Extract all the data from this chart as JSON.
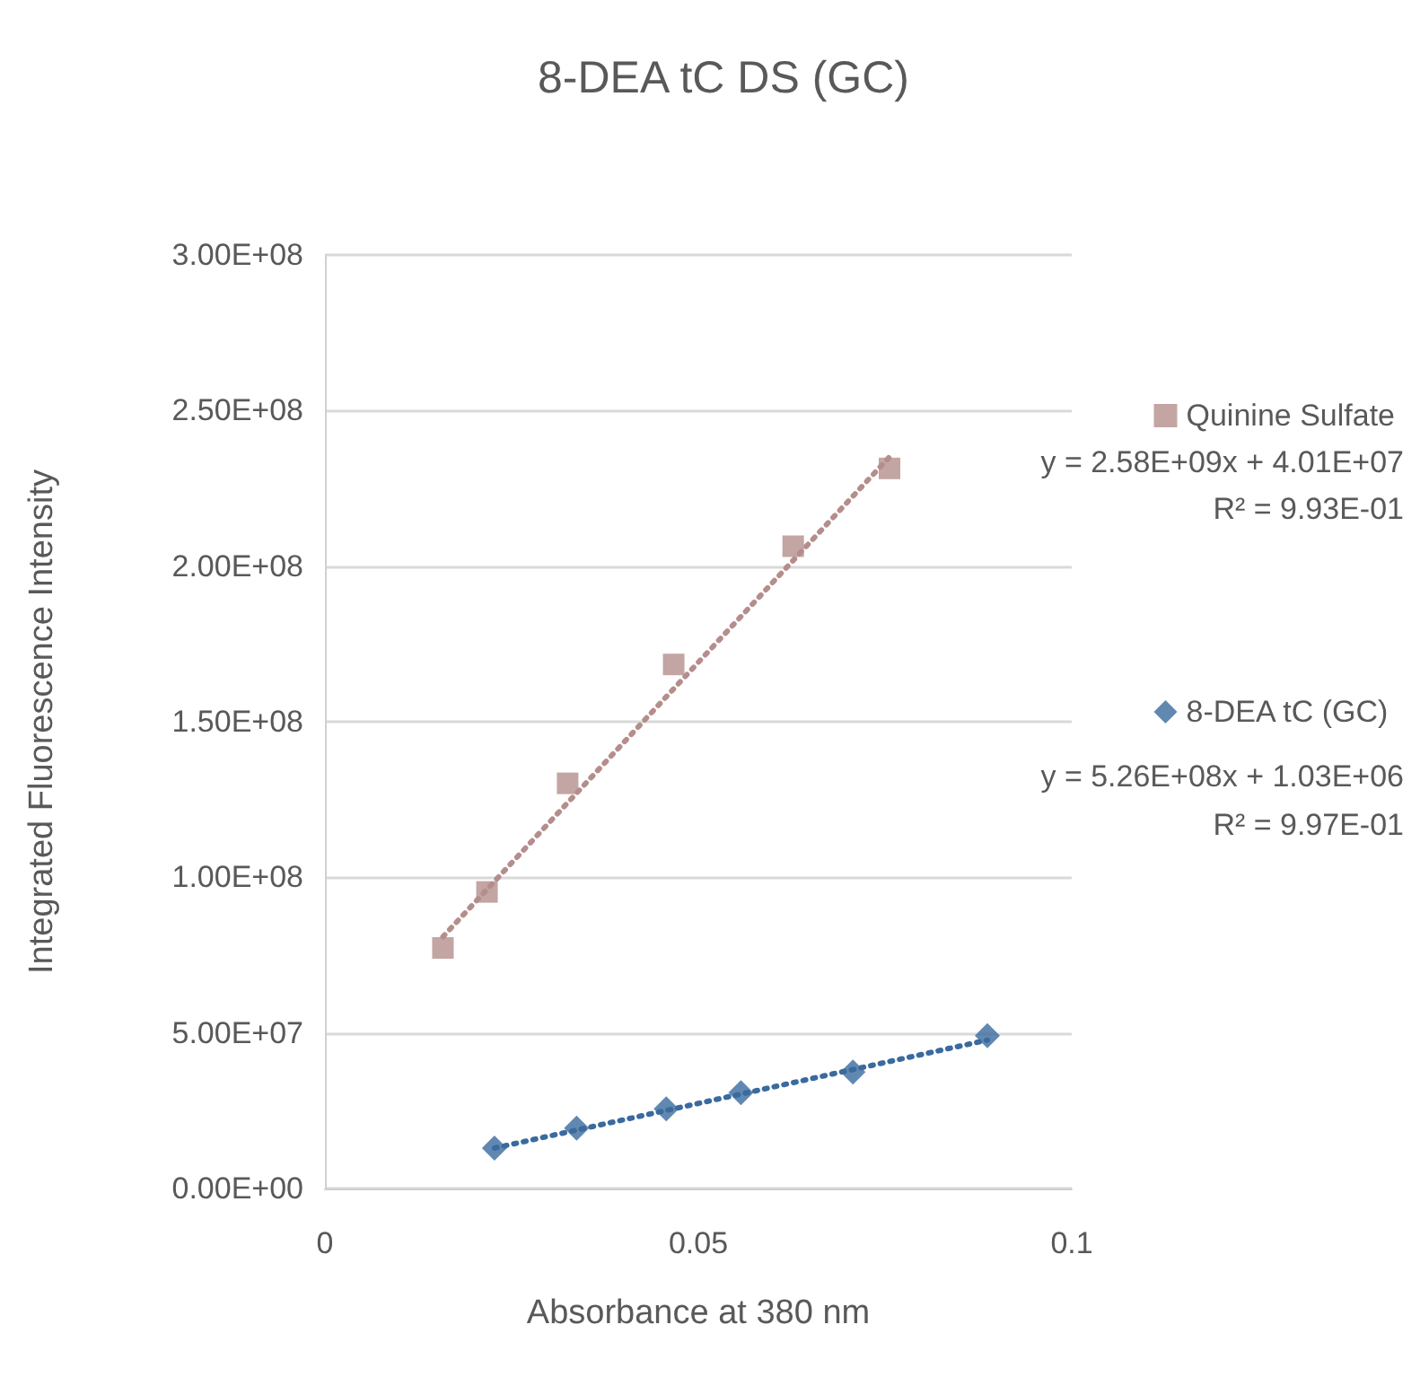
{
  "chart_data": {
    "type": "scatter",
    "title": "8-DEA tC DS (GC)",
    "xlabel": "Absorbance at 380 nm",
    "ylabel": "Integrated Fluorescence Intensity",
    "series": [
      {
        "name": "Quinine Sulfate",
        "type": "scatter",
        "marker": "square",
        "color": "#b48e8c",
        "x": [
          0.0158,
          0.0217,
          0.0325,
          0.0467,
          0.0627,
          0.0756
        ],
        "values": [
          77300000.0,
          95300000.0,
          130200000.0,
          168400000.0,
          206400000.0,
          231400000.0
        ]
      },
      {
        "name": "8-DEA tC (GC)",
        "type": "scatter",
        "marker": "diamond",
        "color": "#3a6a9e",
        "x": [
          0.0227,
          0.0337,
          0.0457,
          0.0557,
          0.0707,
          0.0887
        ],
        "values": [
          13000000.0,
          19400000.0,
          25600000.0,
          30800000.0,
          37400000.0,
          49100000.0
        ]
      },
      {
        "type": "line",
        "marker": "none",
        "line_style": "dotted",
        "color": "#b48e8c",
        "x": [
          0.0158,
          0.0756
        ],
        "values": [
          80900000.0,
          235100000.0
        ]
      },
      {
        "type": "line",
        "marker": "none",
        "line_style": "dotted",
        "color": "#3a6a9e",
        "x": [
          0.0227,
          0.0887
        ],
        "values": [
          13000000.0,
          47700000.0
        ]
      }
    ],
    "annotations": [
      "y = 2.58E+09x + 4.01E+07",
      "R² = 9.93E-01",
      "y = 5.26E+08x + 1.03E+06",
      "R² = 9.97E-01"
    ],
    "xlim": [
      0,
      0.1
    ],
    "xticks": [
      0,
      0.05,
      0.1
    ],
    "ylim": [
      0,
      300000000.0
    ],
    "yticks": [
      {
        "value": 0,
        "label": "0.00E+00"
      },
      {
        "value": 50000000.0,
        "label": "5.00E+07"
      },
      {
        "value": 100000000.0,
        "label": "1.00E+08"
      },
      {
        "value": 150000000.0,
        "label": "1.50E+08"
      },
      {
        "value": 200000000.0,
        "label": "2.00E+08"
      },
      {
        "value": 250000000.0,
        "label": "2.50E+08"
      },
      {
        "value": 300000000.0,
        "label": "3.00E+08"
      }
    ],
    "grid": "y",
    "legend": "right"
  }
}
